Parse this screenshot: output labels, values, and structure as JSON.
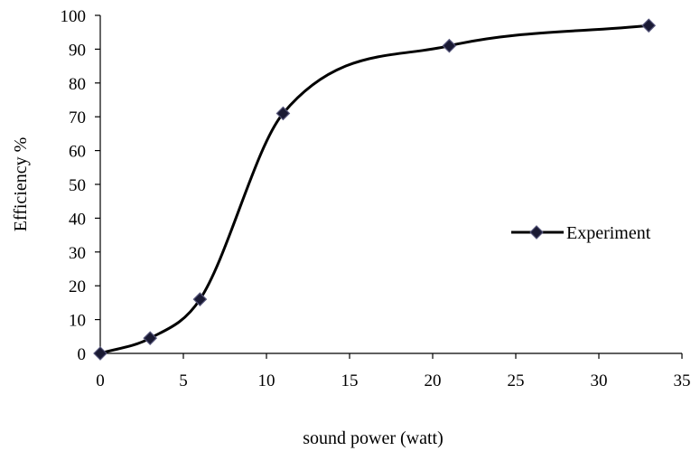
{
  "chart_data": {
    "type": "line",
    "xlabel": "sound power (watt)",
    "ylabel": "Efficiency %",
    "xlim": [
      0,
      35
    ],
    "ylim": [
      0,
      100
    ],
    "x_ticks": [
      0,
      5,
      10,
      15,
      20,
      25,
      30,
      35
    ],
    "y_ticks": [
      0,
      10,
      20,
      30,
      40,
      50,
      60,
      70,
      80,
      90,
      100
    ],
    "grid": false,
    "legend": {
      "position": "right",
      "entries": [
        "Experiment"
      ]
    },
    "series": [
      {
        "name": "Experiment",
        "color": "#000000",
        "marker": "diamond",
        "marker_color": "#1a1a33",
        "smooth": true,
        "x": [
          0,
          3,
          6,
          11,
          21,
          33
        ],
        "y": [
          0,
          4.5,
          16,
          71,
          91,
          97
        ]
      }
    ]
  }
}
